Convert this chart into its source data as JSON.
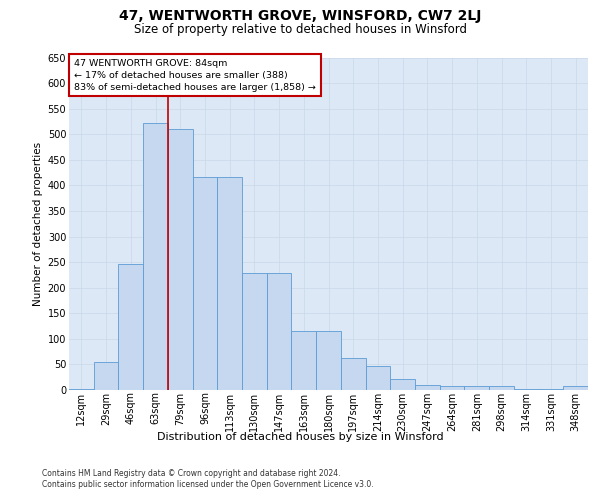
{
  "title": "47, WENTWORTH GROVE, WINSFORD, CW7 2LJ",
  "subtitle": "Size of property relative to detached houses in Winsford",
  "xlabel": "Distribution of detached houses by size in Winsford",
  "ylabel": "Number of detached properties",
  "footer1": "Contains HM Land Registry data © Crown copyright and database right 2024.",
  "footer2": "Contains public sector information licensed under the Open Government Licence v3.0.",
  "annotation_line1": "47 WENTWORTH GROVE: 84sqm",
  "annotation_line2": "← 17% of detached houses are smaller (388)",
  "annotation_line3": "83% of semi-detached houses are larger (1,858) →",
  "bar_labels": [
    "12sqm",
    "29sqm",
    "46sqm",
    "63sqm",
    "79sqm",
    "96sqm",
    "113sqm",
    "130sqm",
    "147sqm",
    "163sqm",
    "180sqm",
    "197sqm",
    "214sqm",
    "230sqm",
    "247sqm",
    "264sqm",
    "281sqm",
    "298sqm",
    "314sqm",
    "331sqm",
    "348sqm"
  ],
  "bar_values": [
    2,
    55,
    247,
    522,
    510,
    417,
    417,
    228,
    228,
    116,
    116,
    62,
    47,
    22,
    10,
    7,
    7,
    7,
    2,
    2,
    7
  ],
  "bar_color": "#c5d8f0",
  "bar_edge_color": "#5b9bd5",
  "grid_color": "#c8d8e8",
  "vline_color": "#c00000",
  "annotation_box_color": "#c00000",
  "ylim": [
    0,
    650
  ],
  "yticks": [
    0,
    50,
    100,
    150,
    200,
    250,
    300,
    350,
    400,
    450,
    500,
    550,
    600,
    650
  ],
  "bg_color": "#dce8f5",
  "title_fontsize": 10,
  "subtitle_fontsize": 8.5,
  "ylabel_fontsize": 7.5,
  "xlabel_fontsize": 8,
  "tick_fontsize": 7,
  "annot_fontsize": 6.8,
  "footer_fontsize": 5.5
}
